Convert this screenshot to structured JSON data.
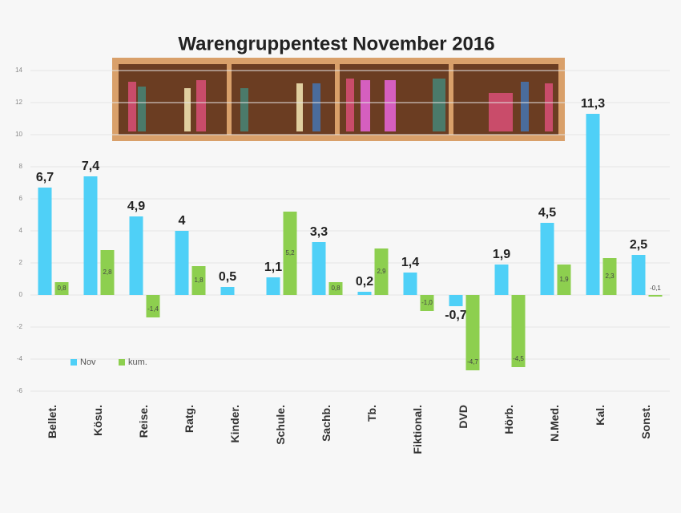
{
  "chart_data": {
    "type": "bar",
    "title": "Warengruppentest November 2016",
    "categories": [
      "Bellet.",
      "Kösu.",
      "Reise.",
      "Ratg.",
      "Kinder.",
      "Schule.",
      "Sachb.",
      "Tb.",
      "Fiktional.",
      "DVD",
      "Hörb.",
      "N.Med.",
      "Kal.",
      "Sonst."
    ],
    "series": [
      {
        "name": "Nov",
        "color": "#4fd0f7",
        "values": [
          6.7,
          7.4,
          4.9,
          4,
          0.5,
          1.1,
          3.3,
          0.2,
          1.4,
          -0.7,
          1.9,
          4.5,
          11.3,
          2.5
        ],
        "value_labels": [
          "6,7",
          "7,4",
          "4,9",
          "4",
          "0,5",
          "1,1",
          "3,3",
          "0,2",
          "1,4",
          "-0,7",
          "1,9",
          "4,5",
          "11,3",
          "2,5"
        ]
      },
      {
        "name": "kum.",
        "color": "#8dcf4f",
        "values": [
          0.8,
          2.8,
          -1.4,
          1.8,
          null,
          5.2,
          0.8,
          2.9,
          -1.0,
          -4.7,
          -4.5,
          1.9,
          2.3,
          -0.1
        ],
        "value_labels": [
          "0,8",
          "2,8",
          "-1,4",
          "1,8",
          null,
          "5,2",
          "0,8",
          "2,9",
          "-1,0",
          "-4,7",
          "-4,5",
          "1,9",
          "2,3",
          "-0,1"
        ]
      }
    ],
    "ylim": [
      -6,
      14
    ],
    "yticks": [
      -6,
      -4,
      -2,
      0,
      2,
      4,
      6,
      8,
      10,
      12,
      14
    ],
    "grid": true,
    "legend": "lower-left"
  }
}
